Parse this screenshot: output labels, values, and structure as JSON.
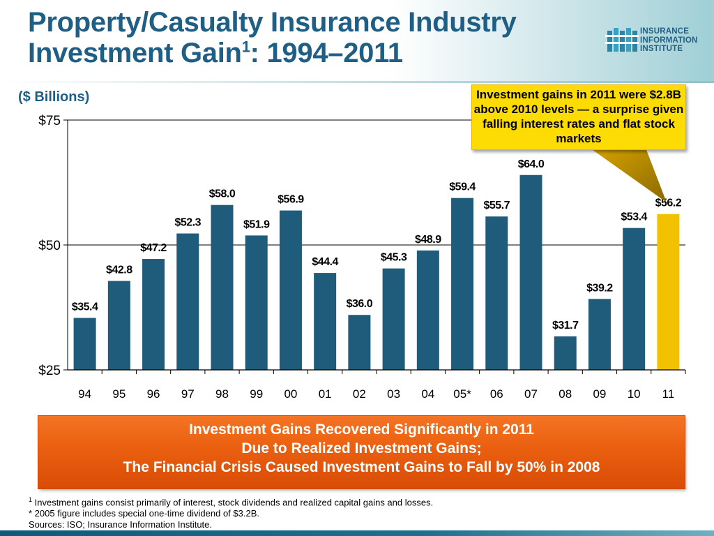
{
  "header": {
    "title_line1": "Property/Casualty Insurance Industry",
    "title_line2_prefix": "Investment Gain",
    "title_superscript": "1",
    "title_line2_suffix": ": 1994–2011"
  },
  "logo": {
    "line1": "INSURANCE",
    "line2": "INFORMATION",
    "line3": "INSTITUTE",
    "icon": "iii-pillars-icon"
  },
  "subtitle": "($ Billions)",
  "callout": {
    "text": "Investment gains in 2011 were $2.8B above 2010 levels — a surprise given falling interest rates and flat stock markets",
    "color": "#fddb05"
  },
  "chart_data": {
    "type": "bar",
    "categories": [
      "94",
      "95",
      "96",
      "97",
      "98",
      "99",
      "00",
      "01",
      "02",
      "03",
      "04",
      "05*",
      "06",
      "07",
      "08",
      "09",
      "10",
      "11"
    ],
    "values": [
      35.4,
      42.8,
      47.2,
      52.3,
      58.0,
      51.9,
      56.9,
      44.4,
      36.0,
      45.3,
      48.9,
      59.4,
      55.7,
      64.0,
      31.7,
      39.2,
      53.4,
      56.2
    ],
    "data_labels": [
      "$35.4",
      "$42.8",
      "$47.2",
      "$52.3",
      "$58.0",
      "$51.9",
      "$56.9",
      "$44.4",
      "$36.0",
      "$45.3",
      "$48.9",
      "$59.4",
      "$55.7",
      "$64.0",
      "$31.7",
      "$39.2",
      "$53.4",
      "$56.2"
    ],
    "ylim": [
      25,
      75
    ],
    "y_ticks": [
      25,
      50,
      75
    ],
    "y_tick_labels": [
      "$25",
      "$50",
      "$75"
    ],
    "grid": true,
    "bar_color": "#1f5b7a",
    "highlight_index": 17,
    "highlight_color": "#f2c200"
  },
  "banner": {
    "line1": "Investment Gains Recovered Significantly in 2011",
    "line2": "Due to Realized Investment Gains;",
    "line3": "The Financial Crisis Caused Investment Gains to Fall by 50% in 2008"
  },
  "footnotes": {
    "note1_marker": "1",
    "note1": " Investment gains consist primarily of interest, stock dividends and realized capital gains and losses.",
    "note2": "* 2005 figure includes special one-time dividend of $3.2B.",
    "sources": "Sources: ISO; Insurance Information Institute."
  }
}
